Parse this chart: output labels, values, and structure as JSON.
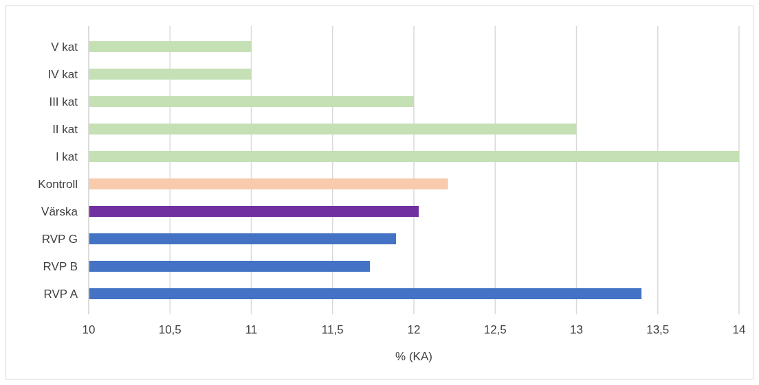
{
  "chart_data": {
    "type": "bar",
    "orientation": "horizontal",
    "xlabel": "% (KA)",
    "categories": [
      "V kat",
      "IV kat",
      "III kat",
      "II kat",
      "I kat",
      "Kontroll",
      "Värska",
      "RVP G",
      "RVP B",
      "RVP A"
    ],
    "values": [
      11,
      11,
      12,
      13,
      14,
      12.21,
      12.03,
      11.89,
      11.73,
      13.4
    ],
    "colors": [
      "#c5e0b4",
      "#c5e0b4",
      "#c5e0b4",
      "#c5e0b4",
      "#c5e0b4",
      "#f8cbad",
      "#7030a0",
      "#4472c4",
      "#4472c4",
      "#4472c4"
    ],
    "xlim": [
      10,
      14
    ],
    "xticks": [
      10,
      {
        "value": 10.5,
        "label": "10,5"
      },
      11,
      {
        "value": 11.5,
        "label": "11,5"
      },
      12,
      {
        "value": 12.5,
        "label": "12,5"
      },
      13,
      {
        "value": 13.5,
        "label": "13,5"
      },
      14
    ],
    "grid": "x"
  }
}
